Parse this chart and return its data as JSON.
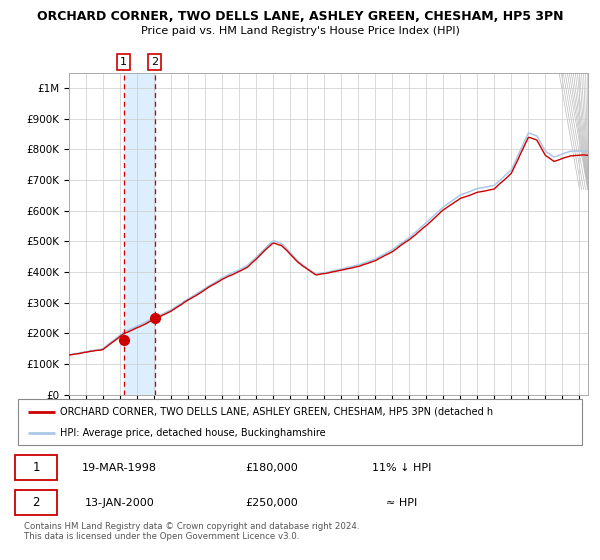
{
  "title_line1": "ORCHARD CORNER, TWO DELLS LANE, ASHLEY GREEN, CHESHAM, HP5 3PN",
  "title_line2": "Price paid vs. HM Land Registry's House Price Index (HPI)",
  "sale1": {
    "date_num": 1998.21,
    "price": 180000,
    "label": "1",
    "date_str": "19-MAR-1998",
    "hpi_rel": "11% ↓ HPI"
  },
  "sale2": {
    "date_num": 2000.04,
    "price": 250000,
    "label": "2",
    "date_str": "13-JAN-2000",
    "hpi_rel": "≈ HPI"
  },
  "legend_line1": "ORCHARD CORNER, TWO DELLS LANE, ASHLEY GREEN, CHESHAM, HP5 3PN (detached h",
  "legend_line2": "HPI: Average price, detached house, Buckinghamshire",
  "footer": "Contains HM Land Registry data © Crown copyright and database right 2024.\nThis data is licensed under the Open Government Licence v3.0.",
  "hpi_line_color": "#aac8e8",
  "price_line_color": "#cc0000",
  "dot_color": "#cc0000",
  "vline_color": "#cc0000",
  "shade_color": "#ddeeff",
  "grid_color": "#cccccc",
  "bg_color": "#ffffff",
  "ylim": [
    0,
    1050000
  ],
  "xlim_start": 1995.0,
  "xlim_end": 2025.5
}
